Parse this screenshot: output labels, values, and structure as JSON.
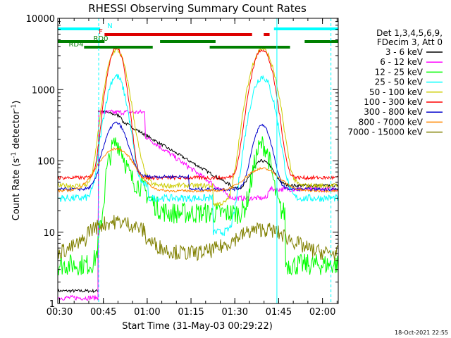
{
  "chart_data": {
    "type": "line",
    "title": "RHESSI Observing Summary Count Rates",
    "xlabel": "Start Time (31-May-03 00:29:22)",
    "ylabel_main": "Count Rate (s",
    "ylabel_sup1": "-1",
    "ylabel_mid": " detector",
    "ylabel_sup2": "-1",
    "ylabel_end": ")",
    "y_scale": "log",
    "ylim": [
      1,
      10000
    ],
    "xlim_minutes": [
      0,
      96
    ],
    "x_ticks": [
      "00:30",
      "00:45",
      "01:00",
      "01:15",
      "01:30",
      "01:45",
      "02:00"
    ],
    "y_ticks": [
      "1",
      "10",
      "100",
      "1000",
      "10000"
    ],
    "timestamp": "18-Oct-2021 22:55",
    "legend_header": [
      "Det 1,3,4,5,6,9,",
      "FDecim 3, Att 0"
    ],
    "legend_position": "right",
    "series": [
      {
        "name": "3 - 6 keV",
        "color": "#000000"
      },
      {
        "name": "6 - 12 keV",
        "color": "#ff00ff"
      },
      {
        "name": "12 - 25 keV",
        "color": "#00ff00"
      },
      {
        "name": "25 - 50 keV",
        "color": "#00ffff"
      },
      {
        "name": "50 - 100 keV",
        "color": "#cccc00"
      },
      {
        "name": "100 - 300 keV",
        "color": "#ff0000"
      },
      {
        "name": "300 - 800 keV",
        "color": "#0000cc"
      },
      {
        "name": "800 - 7000 keV",
        "color": "#ff8800"
      },
      {
        "name": "7000 - 15000 keV",
        "color": "#808000"
      }
    ],
    "flag_bars": [
      {
        "label": "N",
        "color": "#00ffff",
        "segments": [
          [
            0,
            14.5
          ],
          [
            74,
            96
          ]
        ]
      },
      {
        "label": "F",
        "color": "#dd0000",
        "segments": [
          [
            16,
            66.5
          ],
          [
            70.5,
            72.5
          ]
        ]
      },
      {
        "label": "RD0",
        "color": "#008000",
        "segments": [
          [
            0,
            16
          ],
          [
            35,
            54
          ],
          [
            84.5,
            96
          ]
        ]
      },
      {
        "label": "RD4",
        "color": "#008000",
        "segments": [
          [
            9,
            32.5
          ],
          [
            52,
            79.5
          ]
        ]
      }
    ],
    "night_markers": [
      14,
      93.5
    ],
    "saa_marker": 75
  }
}
